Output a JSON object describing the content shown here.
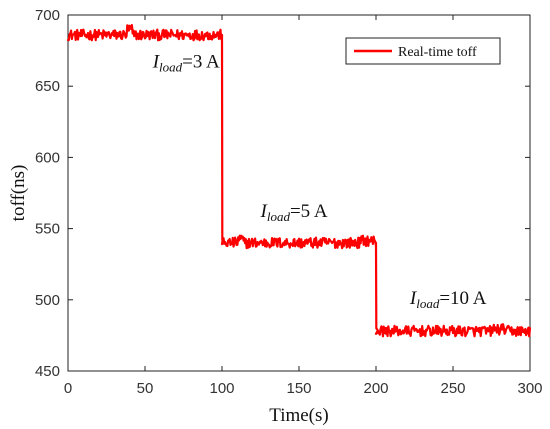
{
  "chart_data": {
    "type": "line",
    "xlabel": "Time(s)",
    "ylabel": "toff(ns)",
    "xlim": [
      0,
      300
    ],
    "ylim": [
      450,
      700
    ],
    "xticks": [
      0,
      50,
      100,
      150,
      200,
      250,
      300
    ],
    "yticks": [
      450,
      500,
      550,
      600,
      650,
      700
    ],
    "series": [
      {
        "name": "Real-time toff",
        "color": "#ff0000",
        "segments": [
          {
            "x": [
              0,
              100
            ],
            "y": 686
          },
          {
            "x": [
              100,
              200
            ],
            "y": 540
          },
          {
            "x": [
              200,
              300
            ],
            "y": 478
          }
        ],
        "steps": [
          {
            "x": 100,
            "from": 686,
            "to": 540
          },
          {
            "x": 200,
            "from": 540,
            "to": 478
          }
        ]
      }
    ],
    "annotations": [
      {
        "text_main": "I",
        "subscript": "load",
        "suffix": "=3 A",
        "x": 55,
        "y": 663
      },
      {
        "text_main": "I",
        "subscript": "load",
        "suffix": "=5 A",
        "x": 125,
        "y": 558
      },
      {
        "text_main": "I",
        "subscript": "load",
        "suffix": "=10 A",
        "x": 222,
        "y": 497
      }
    ],
    "legend": {
      "position": "top-right",
      "items": [
        "Real-time toff"
      ]
    },
    "grid": false
  }
}
